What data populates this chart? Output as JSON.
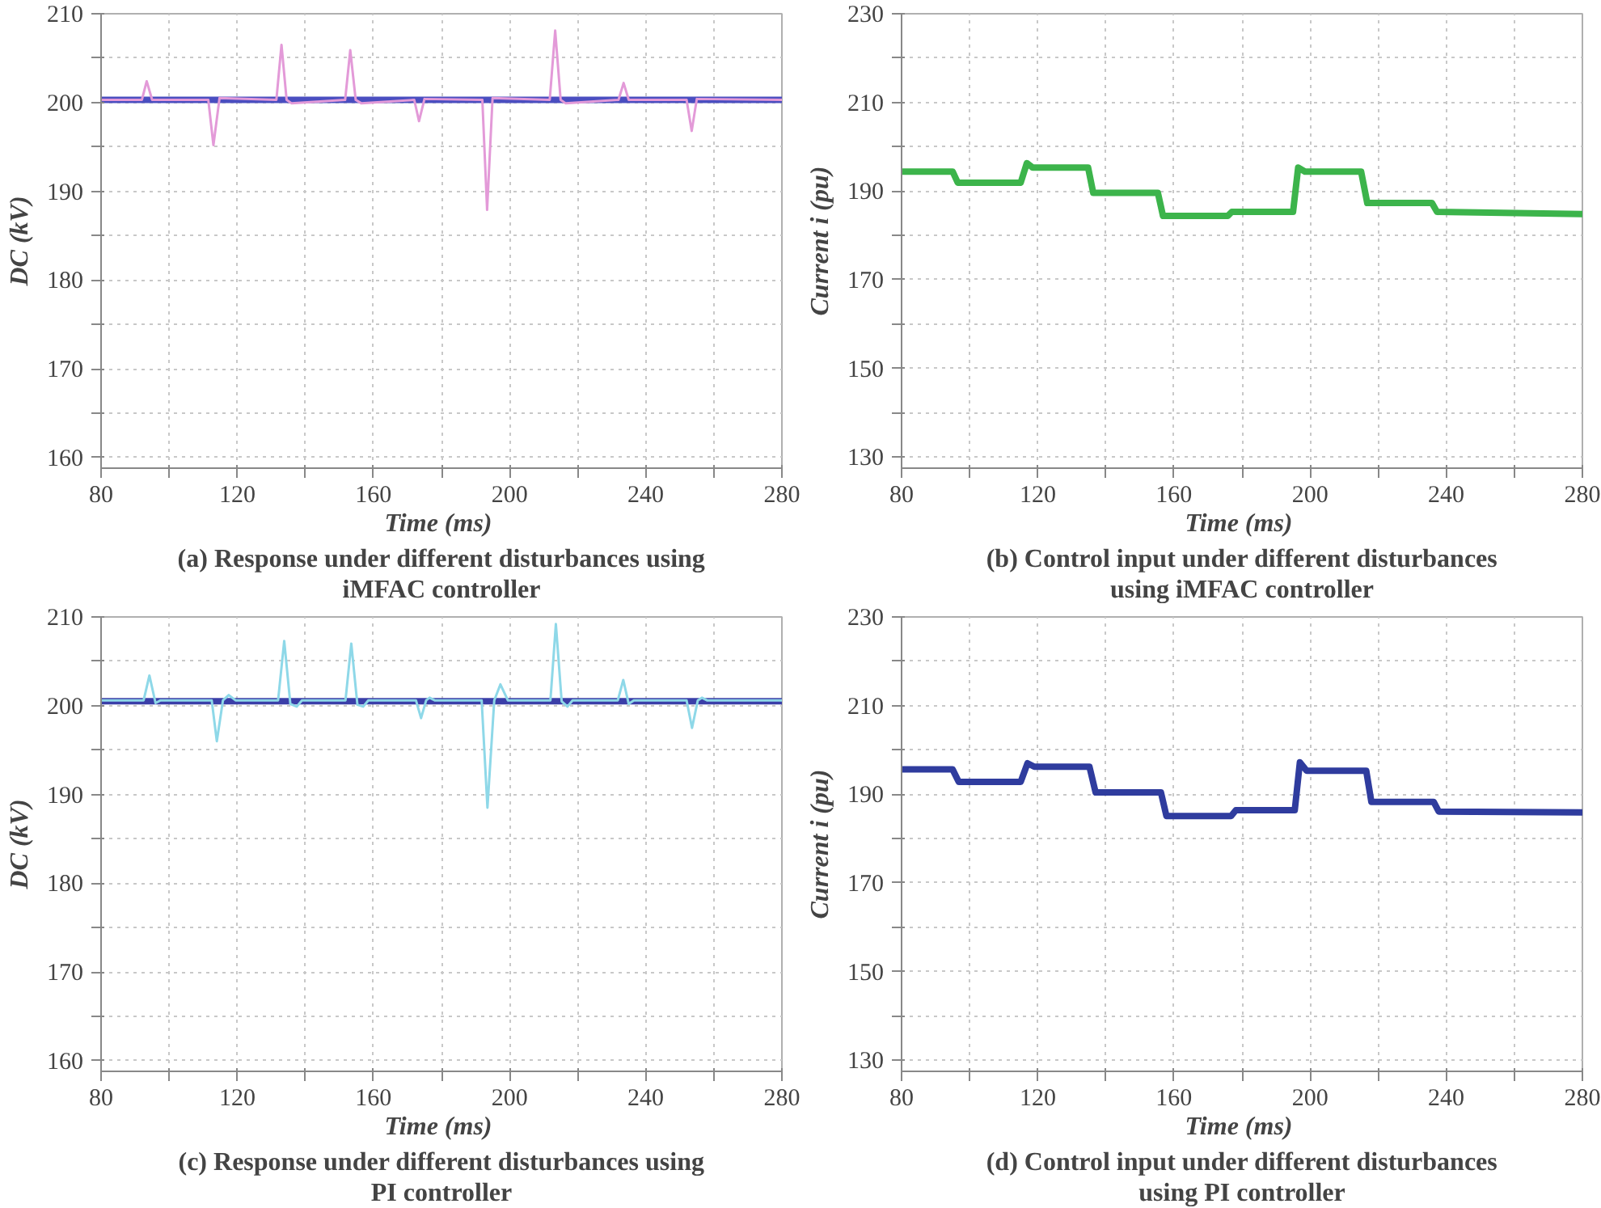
{
  "chart_data": [
    {
      "type": "line",
      "title": "(a) Response under different disturbances using iMFAC controller",
      "xlabel": "Time  (ms)",
      "ylabel": "DC (kV)",
      "xlim": [
        80,
        280
      ],
      "xticks": [
        80,
        {
          "value": 100,
          "label": null
        },
        120,
        {
          "value": 140,
          "label": null
        },
        160,
        {
          "value": 180,
          "label": null
        },
        200,
        {
          "value": 220,
          "label": null
        },
        240,
        {
          "value": 260,
          "label": null
        },
        280
      ],
      "ylim": [
        158.8,
        210
      ],
      "yticks": [
        160,
        {
          "value": 165,
          "label": null
        },
        170,
        {
          "value": 175,
          "label": null
        },
        180,
        {
          "value": 185,
          "label": null
        },
        190,
        {
          "value": 195,
          "label": null
        },
        200,
        {
          "value": 205,
          "label": null
        },
        210
      ],
      "grid": true,
      "line_style": "solid",
      "series": [
        {
          "color": "#4a4ec0",
          "x": [
            80,
            280
          ],
          "values": [
            200.3,
            200.3
          ]
        },
        {
          "color": "#e39ad8",
          "x": [
            80,
            92,
            93.4,
            95,
            111.5,
            113,
            114.8,
            131.5,
            133,
            134.5,
            136,
            151.7,
            153.2,
            154.8,
            156.5,
            172,
            173.4,
            175,
            192,
            193.4,
            195,
            211.8,
            213.4,
            215,
            216.5,
            232,
            233.5,
            235,
            252,
            253.5,
            255,
            280
          ],
          "values": [
            200.3,
            200.3,
            202.4,
            200.3,
            200.3,
            195.2,
            200.5,
            200.3,
            206.5,
            200.3,
            199.9,
            200.3,
            205.9,
            200.3,
            199.9,
            200.3,
            197.9,
            200.4,
            200.3,
            187.9,
            200.5,
            200.3,
            208.1,
            200.3,
            199.9,
            200.3,
            202.2,
            200.3,
            200.3,
            196.8,
            200.4,
            200.3
          ]
        }
      ]
    },
    {
      "type": "line",
      "title": "(b) Control input under different disturbances using iMFAC controller",
      "xlabel": "Time  (ms)",
      "ylabel": "Current i (pu)",
      "xlim": [
        80,
        280
      ],
      "xticks": [
        80,
        {
          "value": 100,
          "label": null
        },
        120,
        {
          "value": 140,
          "label": null
        },
        160,
        {
          "value": 180,
          "label": null
        },
        200,
        {
          "value": 220,
          "label": null
        },
        240,
        {
          "value": 260,
          "label": null
        },
        280
      ],
      "ylim": [
        127.5,
        230
      ],
      "yticks": [
        130,
        {
          "value": 140,
          "label": null
        },
        150,
        {
          "value": 160,
          "label": null
        },
        170,
        {
          "value": 180,
          "label": null
        },
        190,
        {
          "value": 200,
          "label": null
        },
        210,
        {
          "value": 220,
          "label": null
        },
        230
      ],
      "grid": true,
      "line_style": "solid",
      "series": [
        {
          "color": "#3cb44b",
          "x": [
            80,
            95,
            96.5,
            115,
            116.8,
            118.5,
            134.8,
            136.3,
            155.3,
            156.8,
            175.8,
            177,
            195,
            196.5,
            198.5,
            215,
            216.8,
            235.8,
            237.3,
            280
          ],
          "values": [
            194.4,
            194.4,
            191.9,
            191.9,
            196.3,
            195.3,
            195.3,
            189.6,
            189.6,
            184.4,
            184.4,
            185.3,
            185.3,
            195.3,
            194.4,
            194.4,
            187.3,
            187.3,
            185.3,
            184.8
          ]
        }
      ]
    },
    {
      "type": "line",
      "title": "(c) Response under different disturbances using PI controller",
      "xlabel": "Time  (ms)",
      "ylabel": "DC (kV)",
      "xlim": [
        80,
        280
      ],
      "xticks": [
        80,
        {
          "value": 100,
          "label": null
        },
        120,
        {
          "value": 140,
          "label": null
        },
        160,
        {
          "value": 180,
          "label": null
        },
        200,
        {
          "value": 220,
          "label": null
        },
        240,
        {
          "value": 260,
          "label": null
        },
        280
      ],
      "ylim": [
        158.8,
        210
      ],
      "yticks": [
        160,
        {
          "value": 165,
          "label": null
        },
        170,
        {
          "value": 175,
          "label": null
        },
        180,
        {
          "value": 185,
          "label": null
        },
        190,
        {
          "value": 195,
          "label": null
        },
        200,
        {
          "value": 205,
          "label": null
        },
        210
      ],
      "grid": true,
      "line_style": "solid",
      "series": [
        {
          "color": "#3b3fa8",
          "x": [
            80,
            280
          ],
          "values": [
            200.5,
            200.5
          ]
        },
        {
          "color": "#8ed8e8",
          "x": [
            80,
            92.5,
            94.2,
            96,
            97.5,
            112.5,
            114,
            115.8,
            117.5,
            119.5,
            132,
            133.8,
            135.6,
            137.5,
            139,
            151.8,
            153.5,
            155.3,
            157,
            158.5,
            172.5,
            174,
            175.5,
            176.5,
            178,
            191.8,
            193.5,
            195.5,
            197.3,
            199.5,
            212,
            213.6,
            215.3,
            217,
            218.5,
            231.8,
            233.4,
            235,
            236.5,
            252,
            253.6,
            255.3,
            256.5,
            258,
            280
          ],
          "values": [
            200.6,
            200.6,
            203.4,
            200.3,
            200.6,
            200.6,
            196.0,
            200.6,
            201.2,
            200.6,
            200.6,
            207.3,
            200.2,
            199.9,
            200.6,
            200.6,
            207.0,
            200.1,
            199.9,
            200.6,
            200.6,
            198.6,
            200.6,
            200.9,
            200.6,
            200.6,
            188.5,
            200.6,
            202.4,
            200.6,
            200.6,
            209.2,
            200.5,
            199.9,
            200.6,
            200.6,
            202.9,
            200.2,
            200.6,
            200.6,
            197.5,
            200.6,
            200.9,
            200.6,
            200.6
          ]
        }
      ]
    },
    {
      "type": "line",
      "title": "(d) Control input under different disturbances using PI controller",
      "xlabel": "Time  (ms)",
      "ylabel": "Current i (pu)",
      "xlim": [
        80,
        280
      ],
      "xticks": [
        80,
        {
          "value": 100,
          "label": null
        },
        120,
        {
          "value": 140,
          "label": null
        },
        160,
        {
          "value": 180,
          "label": null
        },
        200,
        {
          "value": 220,
          "label": null
        },
        240,
        {
          "value": 260,
          "label": null
        },
        280
      ],
      "ylim": [
        127.5,
        230
      ],
      "yticks": [
        130,
        {
          "value": 140,
          "label": null
        },
        150,
        {
          "value": 160,
          "label": null
        },
        170,
        {
          "value": 180,
          "label": null
        },
        190,
        {
          "value": 200,
          "label": null
        },
        210,
        {
          "value": 220,
          "label": null
        },
        230
      ],
      "grid": true,
      "line_style": "solid",
      "series": [
        {
          "color": "#2f3c9e",
          "x": [
            80,
            95,
            96.8,
            115,
            117,
            119,
            135.2,
            137,
            156.2,
            157.8,
            176.8,
            178.2,
            195.5,
            197,
            199,
            216.5,
            218,
            236.3,
            237.8,
            280
          ],
          "values": [
            195.6,
            195.6,
            192.8,
            192.8,
            197.0,
            196.2,
            196.2,
            190.4,
            190.4,
            185.1,
            185.1,
            186.4,
            186.4,
            197.2,
            195.3,
            195.3,
            188.3,
            188.3,
            186.1,
            185.9
          ]
        }
      ]
    }
  ]
}
